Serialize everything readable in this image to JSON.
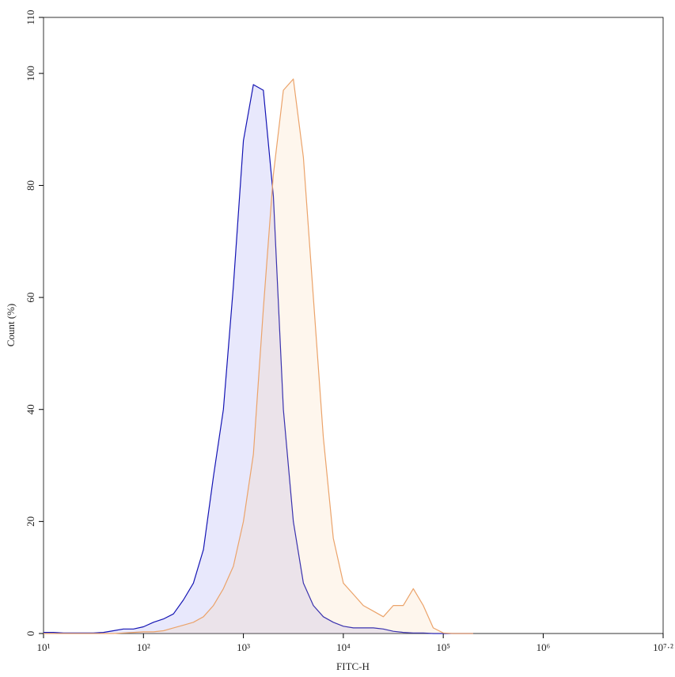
{
  "chart_data": {
    "type": "area",
    "x_label": "FITC-H",
    "y_label": "Count (%)",
    "x_log_scale": true,
    "xlim": [
      10,
      15848932
    ],
    "ylim": [
      0,
      110
    ],
    "xticks": [
      {
        "value": 10,
        "label": "10¹"
      },
      {
        "value": 100,
        "label": "10²"
      },
      {
        "value": 1000,
        "label": "10³"
      },
      {
        "value": 10000,
        "label": "10⁴"
      },
      {
        "value": 100000,
        "label": "10⁵"
      },
      {
        "value": 1000000,
        "label": "10⁶"
      },
      {
        "value": 15848932,
        "label": "10⁷·²"
      }
    ],
    "yticks": [
      0,
      20,
      40,
      60,
      80,
      100,
      110
    ],
    "x": [
      10,
      12.59,
      15.85,
      19.95,
      25.12,
      31.62,
      39.81,
      50.12,
      63.1,
      79.43,
      100,
      125.9,
      158.5,
      199.5,
      251.2,
      316.2,
      398.1,
      501.2,
      631,
      794.3,
      1000,
      1259,
      1585,
      1995,
      2512,
      3162,
      3981,
      5012,
      6310,
      7943,
      10000,
      12589,
      15849,
      19953,
      25119,
      31623,
      39811,
      50119,
      63096,
      79433,
      100000,
      125893,
      158489,
      199526
    ],
    "series": [
      {
        "color": "#1414b4",
        "fill": "rgba(120,120,235,0.17)",
        "values": [
          0.2,
          0.2,
          0.1,
          0.1,
          0.1,
          0.1,
          0.2,
          0.5,
          0.8,
          0.8,
          1.2,
          2,
          2.6,
          3.5,
          6,
          9,
          15,
          28,
          40,
          62,
          88,
          98,
          97,
          78,
          40,
          20,
          9,
          5,
          3,
          2,
          1.3,
          1,
          1,
          1,
          0.8,
          0.4,
          0.2,
          0.1,
          0.1,
          0,
          0,
          0,
          0,
          0
        ]
      },
      {
        "color": "#eba36a",
        "fill": "rgba(250,200,150,0.17)",
        "values": [
          0,
          0,
          0,
          0,
          0,
          0,
          0,
          0,
          0.1,
          0.2,
          0.3,
          0.3,
          0.5,
          1,
          1.5,
          2,
          3,
          5,
          8,
          12,
          20,
          32,
          58,
          82,
          97,
          99,
          85,
          60,
          35,
          17,
          9,
          7,
          5,
          4,
          3,
          5,
          5,
          8,
          5,
          1,
          0.1,
          0,
          0,
          0
        ]
      }
    ]
  }
}
